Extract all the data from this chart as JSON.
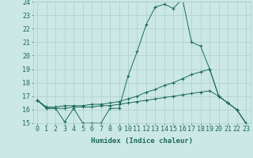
{
  "xlabel": "Humidex (Indice chaleur)",
  "x_values": [
    0,
    1,
    2,
    3,
    4,
    5,
    6,
    7,
    8,
    9,
    10,
    11,
    12,
    13,
    14,
    15,
    16,
    17,
    18,
    19,
    20,
    21,
    22,
    23
  ],
  "x_labels": [
    "0",
    "1",
    "2",
    "3",
    "4",
    "5",
    "6",
    "7",
    "8",
    "9",
    "10",
    "11",
    "12",
    "13",
    "14",
    "15",
    "16",
    "17",
    "18",
    "19",
    "20",
    "21",
    "22",
    "23"
  ],
  "series1": [
    16.7,
    16.1,
    16.1,
    15.1,
    16.1,
    15.0,
    15.0,
    15.0,
    16.1,
    16.1,
    18.5,
    20.3,
    22.3,
    23.6,
    23.8,
    23.5,
    24.2,
    21.0,
    20.7,
    19.0,
    17.0,
    16.5,
    16.0,
    15.0
  ],
  "series2": [
    16.7,
    16.2,
    16.2,
    16.3,
    16.3,
    16.3,
    16.4,
    16.4,
    16.5,
    16.6,
    16.8,
    17.0,
    17.3,
    17.5,
    17.8,
    18.0,
    18.3,
    18.6,
    18.8,
    19.0,
    17.0,
    16.5,
    16.0,
    15.0
  ],
  "series3": [
    16.7,
    16.1,
    16.1,
    16.1,
    16.2,
    16.2,
    16.2,
    16.3,
    16.3,
    16.4,
    16.5,
    16.6,
    16.7,
    16.8,
    16.9,
    17.0,
    17.1,
    17.2,
    17.3,
    17.4,
    17.0,
    16.5,
    16.0,
    15.0
  ],
  "line_color": "#1a6b5a",
  "bg_color": "#cce8e4",
  "grid_color": "#aacfcb",
  "ylim": [
    15,
    24
  ],
  "yticks": [
    15,
    16,
    17,
    18,
    19,
    20,
    21,
    22,
    23,
    24
  ],
  "axis_fontsize": 6.5,
  "tick_fontsize": 6.0
}
